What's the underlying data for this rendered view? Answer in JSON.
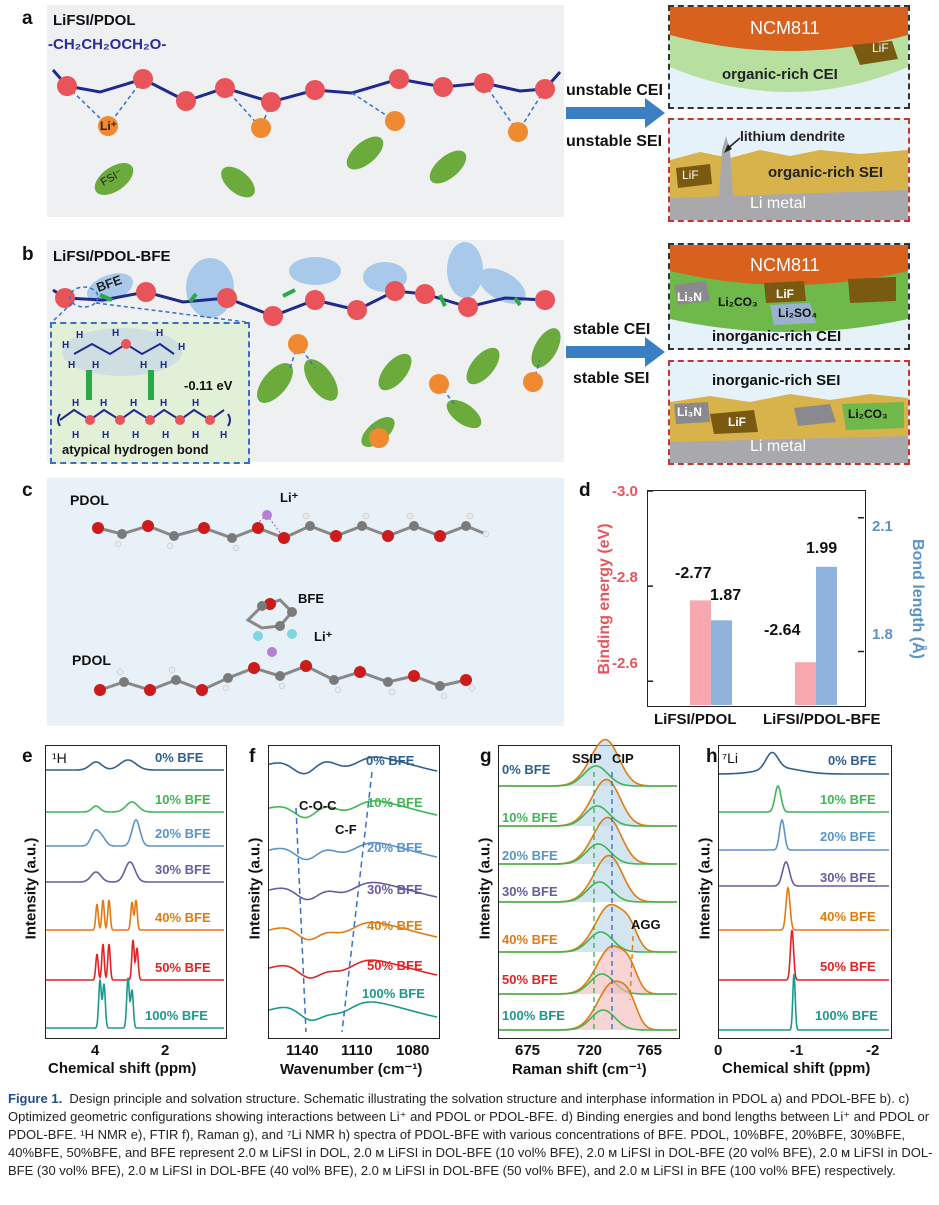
{
  "panel_a": {
    "label": "a",
    "title": "LiFSI/PDOL",
    "formula": "-CH₂CH₂OCH₂O-",
    "li": "Li⁺",
    "fsi": "FSI⁻",
    "arrow_top": "unstable CEI",
    "arrow_bottom": "unstable SEI",
    "cei_top": "NCM811",
    "cei_mid": "organic-rich CEI",
    "cei_lif": "LiF",
    "sei_dendrite": "lithium dendrite",
    "sei_lif": "LiF",
    "sei_mid": "organic-rich SEI",
    "sei_bottom": "Li metal"
  },
  "panel_b": {
    "label": "b",
    "title": "LiFSI/PDOL-BFE",
    "bfe": "BFE",
    "energy": "-0.11 eV",
    "hbond": "atypical hydrogen bond",
    "arrow_top": "stable CEI",
    "arrow_bottom": "stable SEI",
    "cei_top": "NCM811",
    "cei_li3n": "Li₃N",
    "cei_li2co3": "Li₂CO₃",
    "cei_lif": "LiF",
    "cei_li2so4": "Li₂SO₄",
    "cei_mid": "inorganic-rich CEI",
    "sei_top": "inorganic-rich SEI",
    "sei_li3n": "Li₃N",
    "sei_lif": "LiF",
    "sei_li2co3": "Li₂CO₃",
    "sei_bottom": "Li metal"
  },
  "panel_c": {
    "label": "c",
    "pdol_top": "PDOL",
    "li_top": "Li⁺",
    "bfe": "BFE",
    "li_bottom": "Li⁺",
    "pdol_bottom": "PDOL"
  },
  "panel_d": {
    "label": "d",
    "chart_data": {
      "type": "bar",
      "title": "",
      "categories": [
        "LiFSI/PDOL",
        "LiFSI/PDOL-BFE"
      ],
      "series": [
        {
          "name": "Binding energy (eV)",
          "axis": "left",
          "color": "#f7a8ae",
          "values": [
            -2.77,
            -2.64
          ]
        },
        {
          "name": "Bond length (Å)",
          "axis": "right",
          "color": "#8fb3dc",
          "values": [
            1.87,
            1.99
          ]
        }
      ],
      "value_labels": [
        "-2.77",
        "1.87",
        "-2.64",
        "1.99"
      ],
      "ylabel_left": "Binding energy (eV)",
      "ylabel_right": "Bond length (Å)",
      "ylim_left": [
        -2.55,
        -3.0
      ],
      "ylim_right": [
        1.68,
        2.16
      ],
      "ticks_left": [
        "-3.0",
        "-2.8",
        "-2.6"
      ],
      "ticks_right": [
        "2.1",
        "1.8"
      ]
    }
  },
  "panel_e": {
    "label": "e",
    "nucleus": "¹H",
    "xlabel": "Chemical shift (ppm)",
    "ylabel": "Intensity (a.u.)",
    "ticks": [
      "4",
      "2"
    ],
    "series": [
      "0% BFE",
      "10% BFE",
      "20% BFE",
      "30% BFE",
      "40% BFE",
      "50% BFE",
      "100% BFE"
    ]
  },
  "panel_f": {
    "label": "f",
    "xlabel": "Wavenumber (cm⁻¹)",
    "ylabel": "Intensity (a.u.)",
    "ticks": [
      "1140",
      "1110",
      "1080"
    ],
    "ann1": "C-O-C",
    "ann2": "C-F",
    "series": [
      "0% BFE",
      "10% BFE",
      "20% BFE",
      "30% BFE",
      "40% BFE",
      "50% BFE",
      "100% BFE"
    ]
  },
  "panel_g": {
    "label": "g",
    "xlabel": "Raman shift (cm⁻¹)",
    "ylabel": "Intensity (a.u.)",
    "ticks": [
      "675",
      "720",
      "765"
    ],
    "ann_ssip": "SSIP",
    "ann_cip": "CIP",
    "ann_agg": "AGG",
    "series": [
      "0% BFE",
      "10% BFE",
      "20% BFE",
      "30% BFE",
      "40% BFE",
      "50% BFE",
      "100% BFE"
    ]
  },
  "panel_h": {
    "label": "h",
    "nucleus": "⁷Li",
    "xlabel": "Chemical shift (ppm)",
    "ylabel": "Intensity (a.u.)",
    "ticks": [
      "0",
      "-1",
      "-2"
    ],
    "series": [
      "0% BFE",
      "10% BFE",
      "20% BFE",
      "30% BFE",
      "40% BFE",
      "50% BFE",
      "100% BFE"
    ]
  },
  "series_colors": [
    "#2f5f8f",
    "#3fb653",
    "#5a93c8",
    "#6a5aa0",
    "#e07b12",
    "#e02424",
    "#1a9a8a"
  ],
  "caption": {
    "fig": "Figure 1.",
    "text": "Design principle and solvation structure. Schematic illustrating the solvation structure and interphase information in PDOL a) and PDOL-BFE b). c) Optimized geometric configurations showing interactions between Li⁺ and PDOL or PDOL-BFE. d) Binding energies and bond lengths between Li⁺ and PDOL or PDOL-BFE. ¹H NMR e), FTIR f), Raman g), and ⁷Li NMR h) spectra of PDOL-BFE with various concentrations of BFE. PDOL, 10%BFE, 20%BFE, 30%BFE, 40%BFE, 50%BFE, and BFE represent 2.0 м LiFSI in DOL, 2.0 м LiFSI in DOL-BFE (10 vol% BFE), 2.0 м LiFSI in DOL-BFE (20 vol% BFE), 2.0 м LiFSI in DOL-BFE (30 vol% BFE), 2.0 м LiFSI in DOL-BFE (40 vol% BFE), 2.0 м LiFSI in DOL-BFE (50 vol% BFE), and 2.0 м LiFSI in BFE (100 vol% BFE) respectively."
  }
}
